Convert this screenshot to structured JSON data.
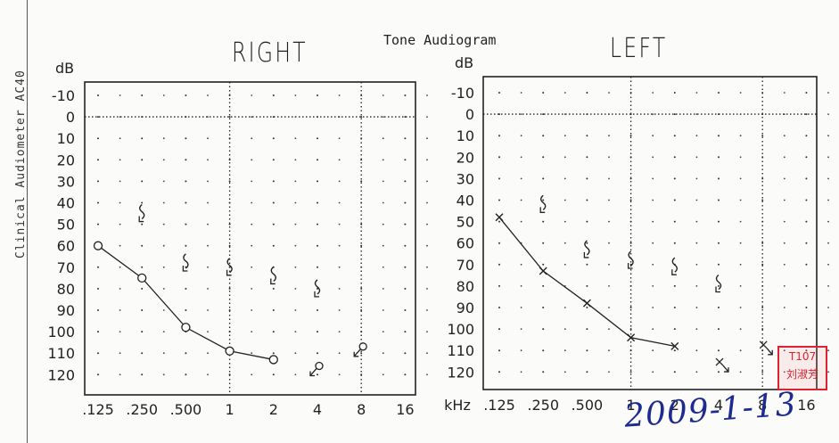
{
  "side_label": "Clinical Audiometer  AC40",
  "title": "Tone Audiogram",
  "date_handwritten": "2009-1-13",
  "stamp_text": [
    "T107",
    "刘淑芳"
  ],
  "chart_data": [
    {
      "type": "line",
      "title": "RIGHT",
      "ylabel": "dB",
      "xlabel": "",
      "x": [
        ".125",
        ".250",
        ".500",
        "1",
        "2",
        "4",
        "8",
        "16"
      ],
      "y_ticks": [
        -10,
        0,
        10,
        20,
        30,
        40,
        50,
        60,
        70,
        80,
        90,
        100,
        110,
        120
      ],
      "ylim": [
        -10,
        120
      ],
      "y_inverted": true,
      "series": [
        {
          "values": [
            60,
            75,
            98,
            109,
            113,
            null,
            null,
            null
          ]
        }
      ],
      "bone_conduction": [
        {
          "x": ".250",
          "y": 45
        },
        {
          "x": ".500",
          "y": 68
        },
        {
          "x": "1",
          "y": 70
        },
        {
          "x": "2",
          "y": 74
        },
        {
          "x": "4",
          "y": 80
        }
      ],
      "no_response": [
        {
          "x": "4",
          "y": 118
        },
        {
          "x": "8",
          "y": 109
        }
      ],
      "colors": {
        "ink": "#222222"
      }
    },
    {
      "type": "line",
      "title": "LEFT",
      "ylabel": "dB",
      "xlabel": "kHz",
      "x": [
        ".125",
        ".250",
        ".500",
        "1",
        "2",
        "4",
        "8",
        "16"
      ],
      "y_ticks": [
        -10,
        0,
        10,
        20,
        30,
        40,
        50,
        60,
        70,
        80,
        90,
        100,
        110,
        120
      ],
      "ylim": [
        -10,
        120
      ],
      "y_inverted": true,
      "series": [
        {
          "values": [
            48,
            73,
            88,
            104,
            108,
            null,
            null,
            null
          ]
        }
      ],
      "bone_conduction": [
        {
          "x": ".250",
          "y": 42
        },
        {
          "x": ".500",
          "y": 63
        },
        {
          "x": "1",
          "y": 68
        },
        {
          "x": "2",
          "y": 71
        },
        {
          "x": "4",
          "y": 79
        }
      ],
      "no_response": [
        {
          "x": "4",
          "y": 117
        },
        {
          "x": "8",
          "y": 109
        }
      ],
      "colors": {
        "ink": "#222222"
      }
    }
  ]
}
